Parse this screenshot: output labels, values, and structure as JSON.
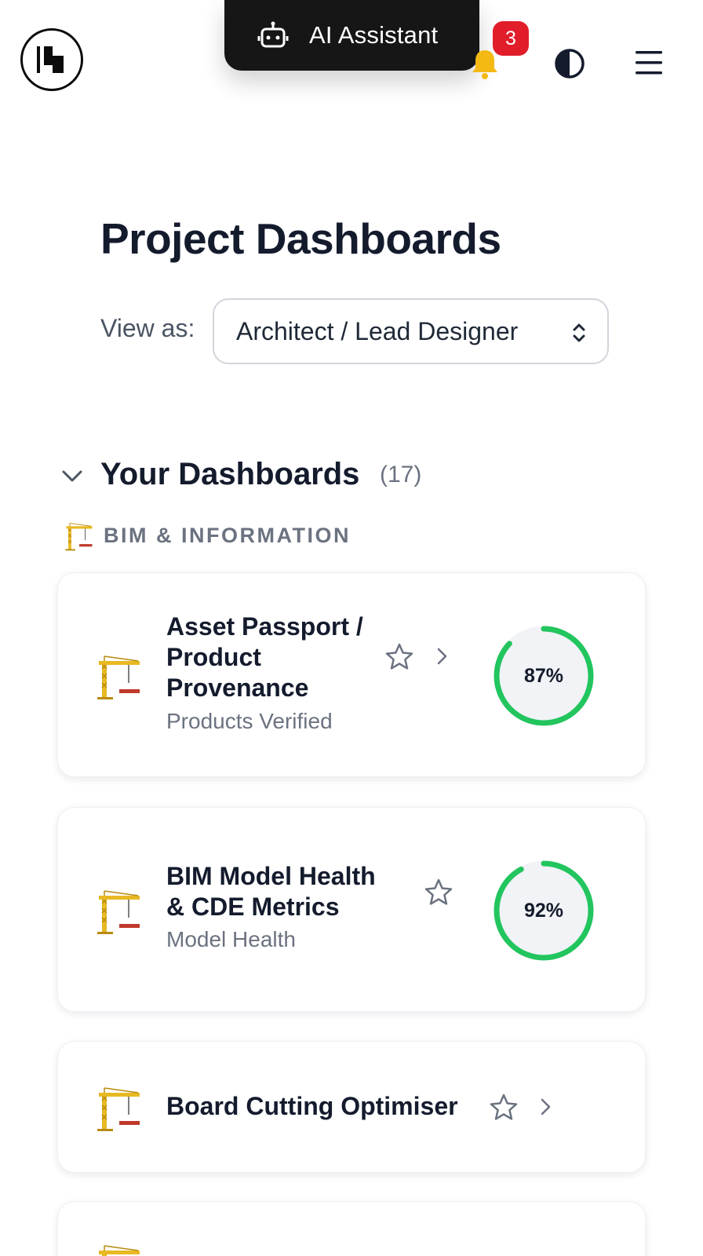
{
  "header": {
    "ai_assistant_label": "AI Assistant",
    "notification_count": "3",
    "icons": {
      "logo": "logo-mark",
      "robot": "robot-icon",
      "bell": "bell-icon",
      "theme": "contrast-icon",
      "menu": "hamburger-icon"
    }
  },
  "page": {
    "title": "Project Dashboards",
    "view_as_label": "View as:",
    "view_as_value": "Architect / Lead Designer"
  },
  "section": {
    "title": "Your Dashboards",
    "count": "(17)",
    "group_label": "BIM & INFORMATION"
  },
  "cards": [
    {
      "title_lines": [
        "Asset Passport /",
        "Product",
        "Provenance"
      ],
      "subtitle": "Products Verified",
      "percent": 87,
      "percent_label": "87%"
    },
    {
      "title_lines": [
        "BIM Model Health",
        "& CDE Metrics"
      ],
      "subtitle": "Model Health",
      "percent": 92,
      "percent_label": "92%"
    },
    {
      "title_lines": [
        "Board Cutting Optimiser"
      ]
    }
  ],
  "colors": {
    "gauge_green": "#22c55e",
    "gauge_bg": "#f1f3f6",
    "badge_red": "#e11d2a",
    "bell_yellow": "#f5b914",
    "pill_dark": "#161616"
  }
}
